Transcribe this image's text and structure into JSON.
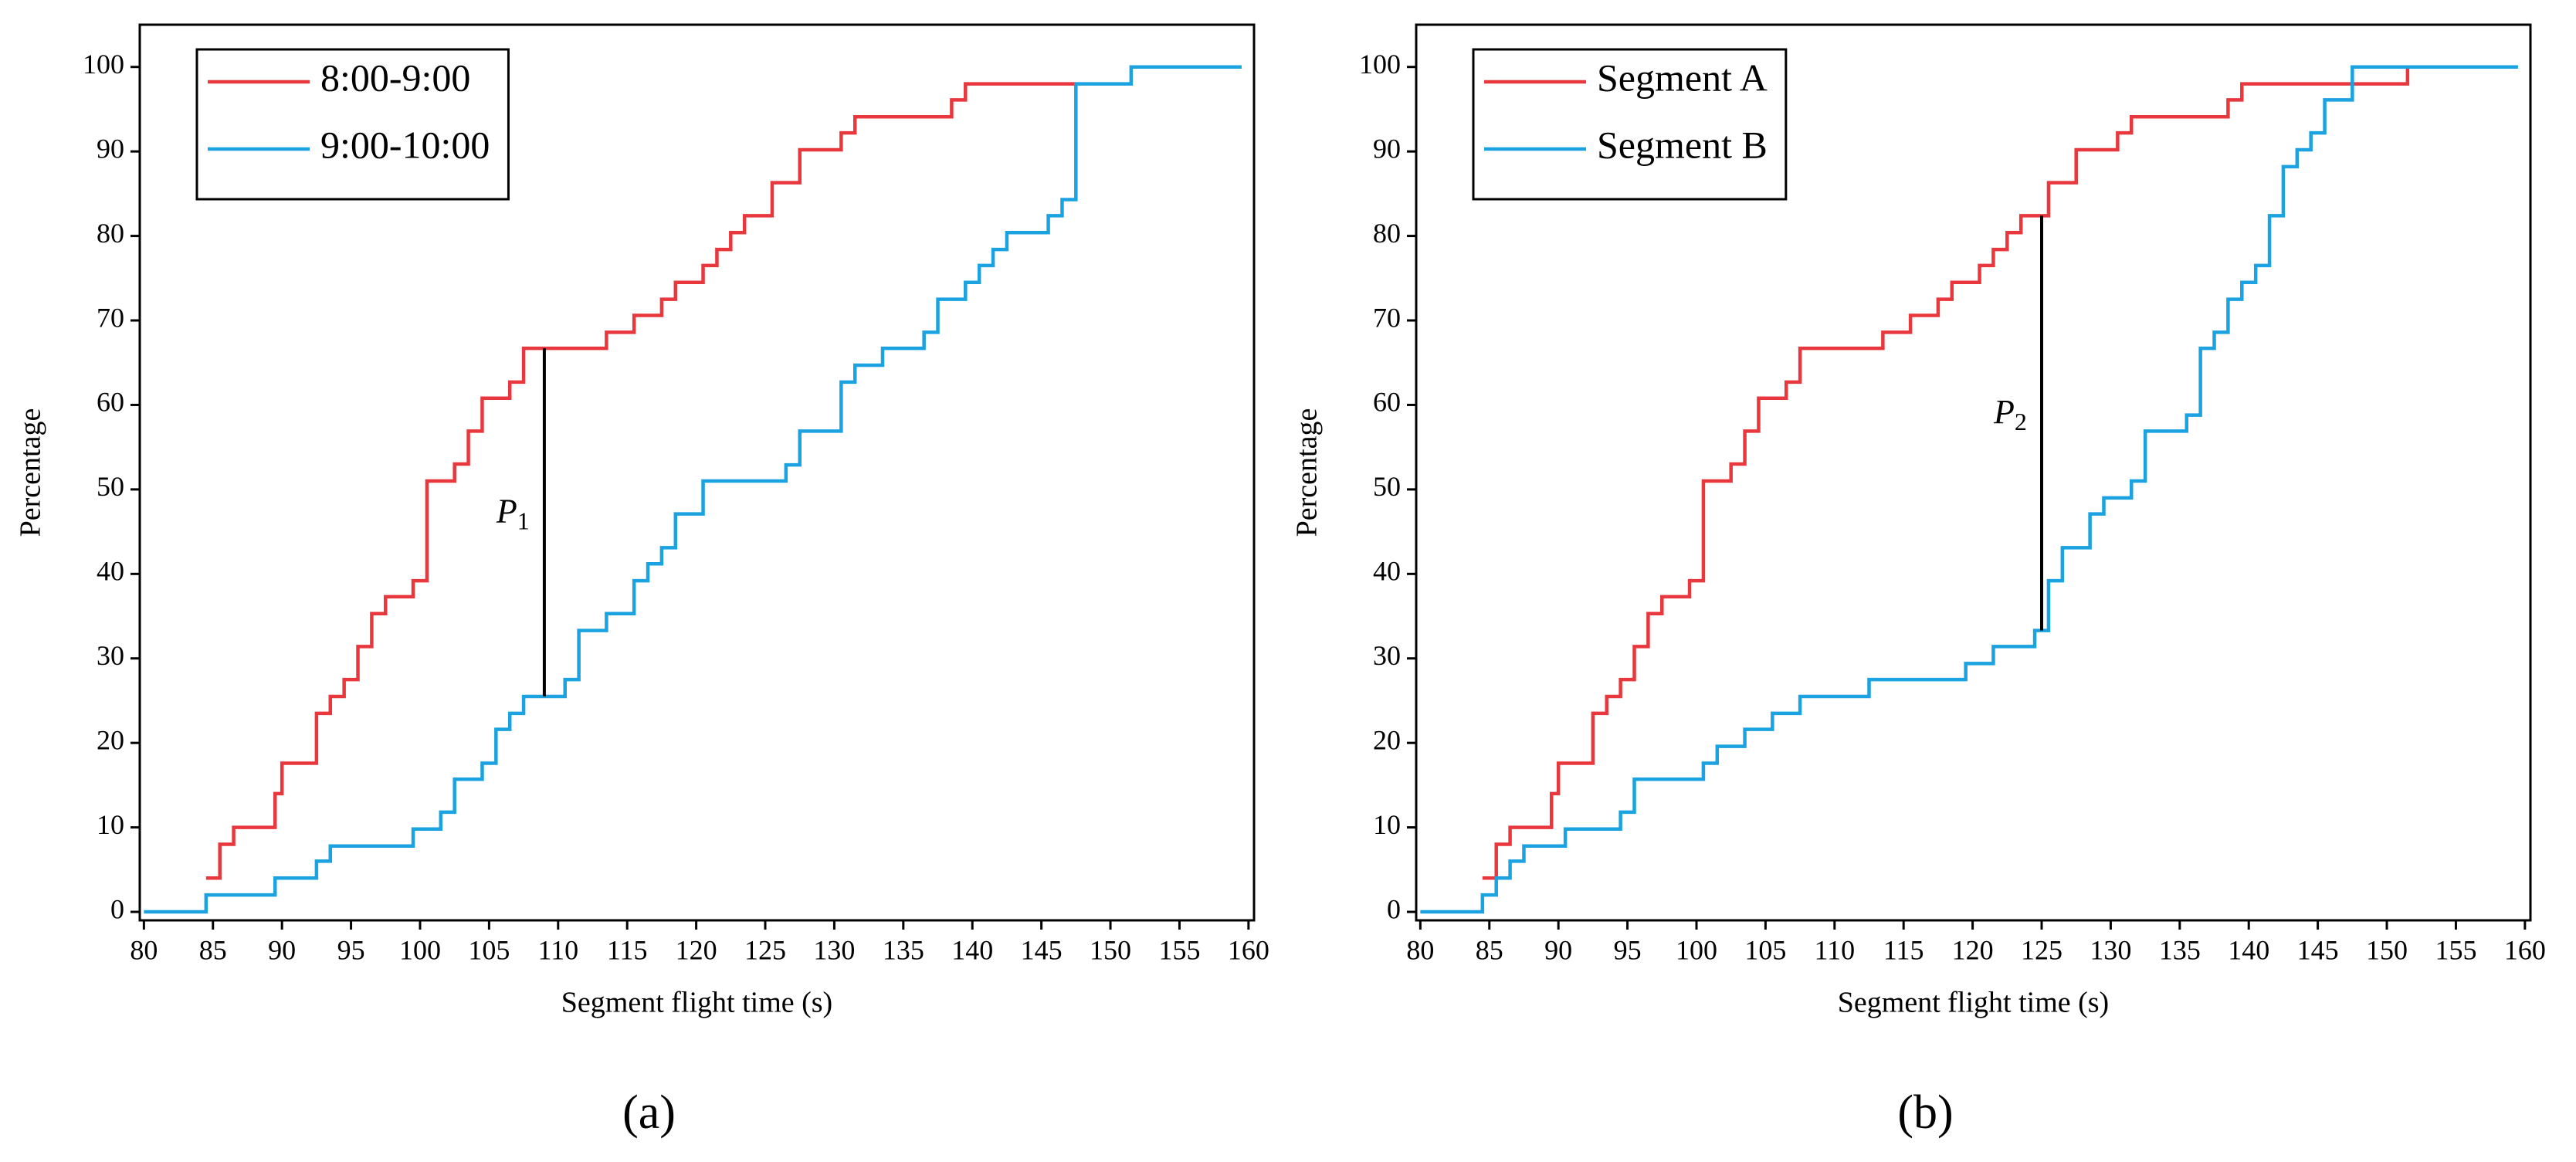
{
  "chart_data": [
    {
      "type": "line",
      "step": true,
      "legend": "upper left",
      "caption": "(a)",
      "xlabel": "Segment flight time (s)",
      "ylabel": "Percentage",
      "xlim": [
        79.7,
        160.4
      ],
      "ylim": [
        -1,
        105
      ],
      "xticks": [
        80,
        85,
        90,
        95,
        100,
        105,
        110,
        115,
        120,
        125,
        130,
        135,
        140,
        145,
        150,
        155,
        160
      ],
      "yticks": [
        0,
        10,
        20,
        30,
        40,
        50,
        60,
        70,
        80,
        90,
        100
      ],
      "series": [
        {
          "name": "8:00-9:00",
          "color": "#e8383d",
          "x": [
            84.5,
            85.5,
            86.5,
            89.5,
            90,
            92.5,
            93.5,
            94.5,
            95.5,
            96.5,
            97.5,
            99.5,
            100.5,
            102.5,
            103.5,
            104.5,
            106.5,
            107.5,
            113.5,
            115.5,
            117.5,
            118.5,
            120.5,
            121.5,
            122.5,
            123.5,
            125.5,
            127.5,
            130.5,
            131.5,
            138.5,
            139.5,
            147.5
          ],
          "values": [
            4,
            8,
            10,
            14,
            17.6,
            23.5,
            25.5,
            27.5,
            31.4,
            35.3,
            37.3,
            39.2,
            51,
            53,
            56.9,
            60.8,
            62.7,
            66.7,
            68.6,
            70.6,
            72.5,
            74.5,
            76.5,
            78.4,
            80.4,
            82.4,
            86.3,
            90.2,
            92.2,
            94.1,
            96.1,
            98,
            98
          ]
        },
        {
          "name": "9:00-10:00",
          "color": "#1aa3e0",
          "x": [
            80,
            84.5,
            89.5,
            92.5,
            93.5,
            99.5,
            101.5,
            102.5,
            104.5,
            105.5,
            106.5,
            107.5,
            110.5,
            111.5,
            113.5,
            115.5,
            116.5,
            117.5,
            118.5,
            120.5,
            126.5,
            127.5,
            130.5,
            131.5,
            133.5,
            136.5,
            137.5,
            139.5,
            140.5,
            141.5,
            142.5,
            145.5,
            146.5,
            147.5,
            151.5,
            159.5
          ],
          "values": [
            0,
            2,
            4,
            6,
            7.8,
            9.8,
            11.8,
            15.7,
            17.6,
            21.6,
            23.5,
            25.5,
            27.5,
            33.3,
            35.3,
            39.2,
            41.2,
            43.1,
            47.1,
            51,
            52.9,
            56.9,
            62.7,
            64.7,
            66.7,
            68.6,
            72.5,
            74.5,
            76.5,
            78.4,
            80.4,
            82.4,
            84.3,
            98,
            100,
            100
          ]
        }
      ],
      "annotation": {
        "label": "P",
        "subscript": "1",
        "x": 109,
        "y_from": 25.5,
        "y_to": 66.7
      }
    },
    {
      "type": "line",
      "step": true,
      "legend": "upper left",
      "caption": "(b)",
      "xlabel": "Segment flight time (s)",
      "ylabel": "Percentage",
      "xlim": [
        79.7,
        160.4
      ],
      "ylim": [
        -1,
        105
      ],
      "xticks": [
        80,
        85,
        90,
        95,
        100,
        105,
        110,
        115,
        120,
        125,
        130,
        135,
        140,
        145,
        150,
        155,
        160
      ],
      "yticks": [
        0,
        10,
        20,
        30,
        40,
        50,
        60,
        70,
        80,
        90,
        100
      ],
      "series": [
        {
          "name": "Segment A",
          "color": "#e8383d",
          "x": [
            84.5,
            85.5,
            86.5,
            89.5,
            90,
            92.5,
            93.5,
            94.5,
            95.5,
            96.5,
            97.5,
            99.5,
            100.5,
            102.5,
            103.5,
            104.5,
            106.5,
            107.5,
            113.5,
            115.5,
            117.5,
            118.5,
            120.5,
            121.5,
            122.5,
            123.5,
            125.5,
            127.5,
            130.5,
            131.5,
            138.5,
            139.5,
            151.5
          ],
          "values": [
            4,
            8,
            10,
            14,
            17.6,
            23.5,
            25.5,
            27.5,
            31.4,
            35.3,
            37.3,
            39.2,
            51,
            53,
            56.9,
            60.8,
            62.7,
            66.7,
            68.6,
            70.6,
            72.5,
            74.5,
            76.5,
            78.4,
            80.4,
            82.4,
            86.3,
            90.2,
            92.2,
            94.1,
            96.1,
            98,
            100
          ]
        },
        {
          "name": "Segment B",
          "color": "#1aa3e0",
          "x": [
            80,
            84.5,
            85.5,
            86.5,
            87.5,
            90.5,
            94.5,
            95.5,
            100.5,
            101.5,
            103.5,
            105.5,
            107.5,
            112.5,
            119.5,
            121.5,
            124.5,
            125.5,
            126.5,
            128.5,
            129.5,
            131.5,
            132.5,
            135.5,
            136.5,
            137.5,
            138.5,
            139.5,
            140.5,
            141.5,
            142.5,
            143.5,
            144.5,
            145.5,
            147.5,
            159.5
          ],
          "values": [
            0,
            2,
            4,
            6,
            7.8,
            9.8,
            11.8,
            15.7,
            17.6,
            19.6,
            21.6,
            23.5,
            25.5,
            27.5,
            29.4,
            31.4,
            33.3,
            39.2,
            43.1,
            47.1,
            49,
            51,
            56.9,
            58.8,
            66.7,
            68.6,
            72.5,
            74.5,
            76.5,
            82.4,
            88.2,
            90.2,
            92.2,
            96.1,
            100,
            100
          ]
        }
      ],
      "annotation": {
        "label": "P",
        "subscript": "2",
        "x": 125,
        "y_from": 33.3,
        "y_to": 82.4
      }
    }
  ]
}
